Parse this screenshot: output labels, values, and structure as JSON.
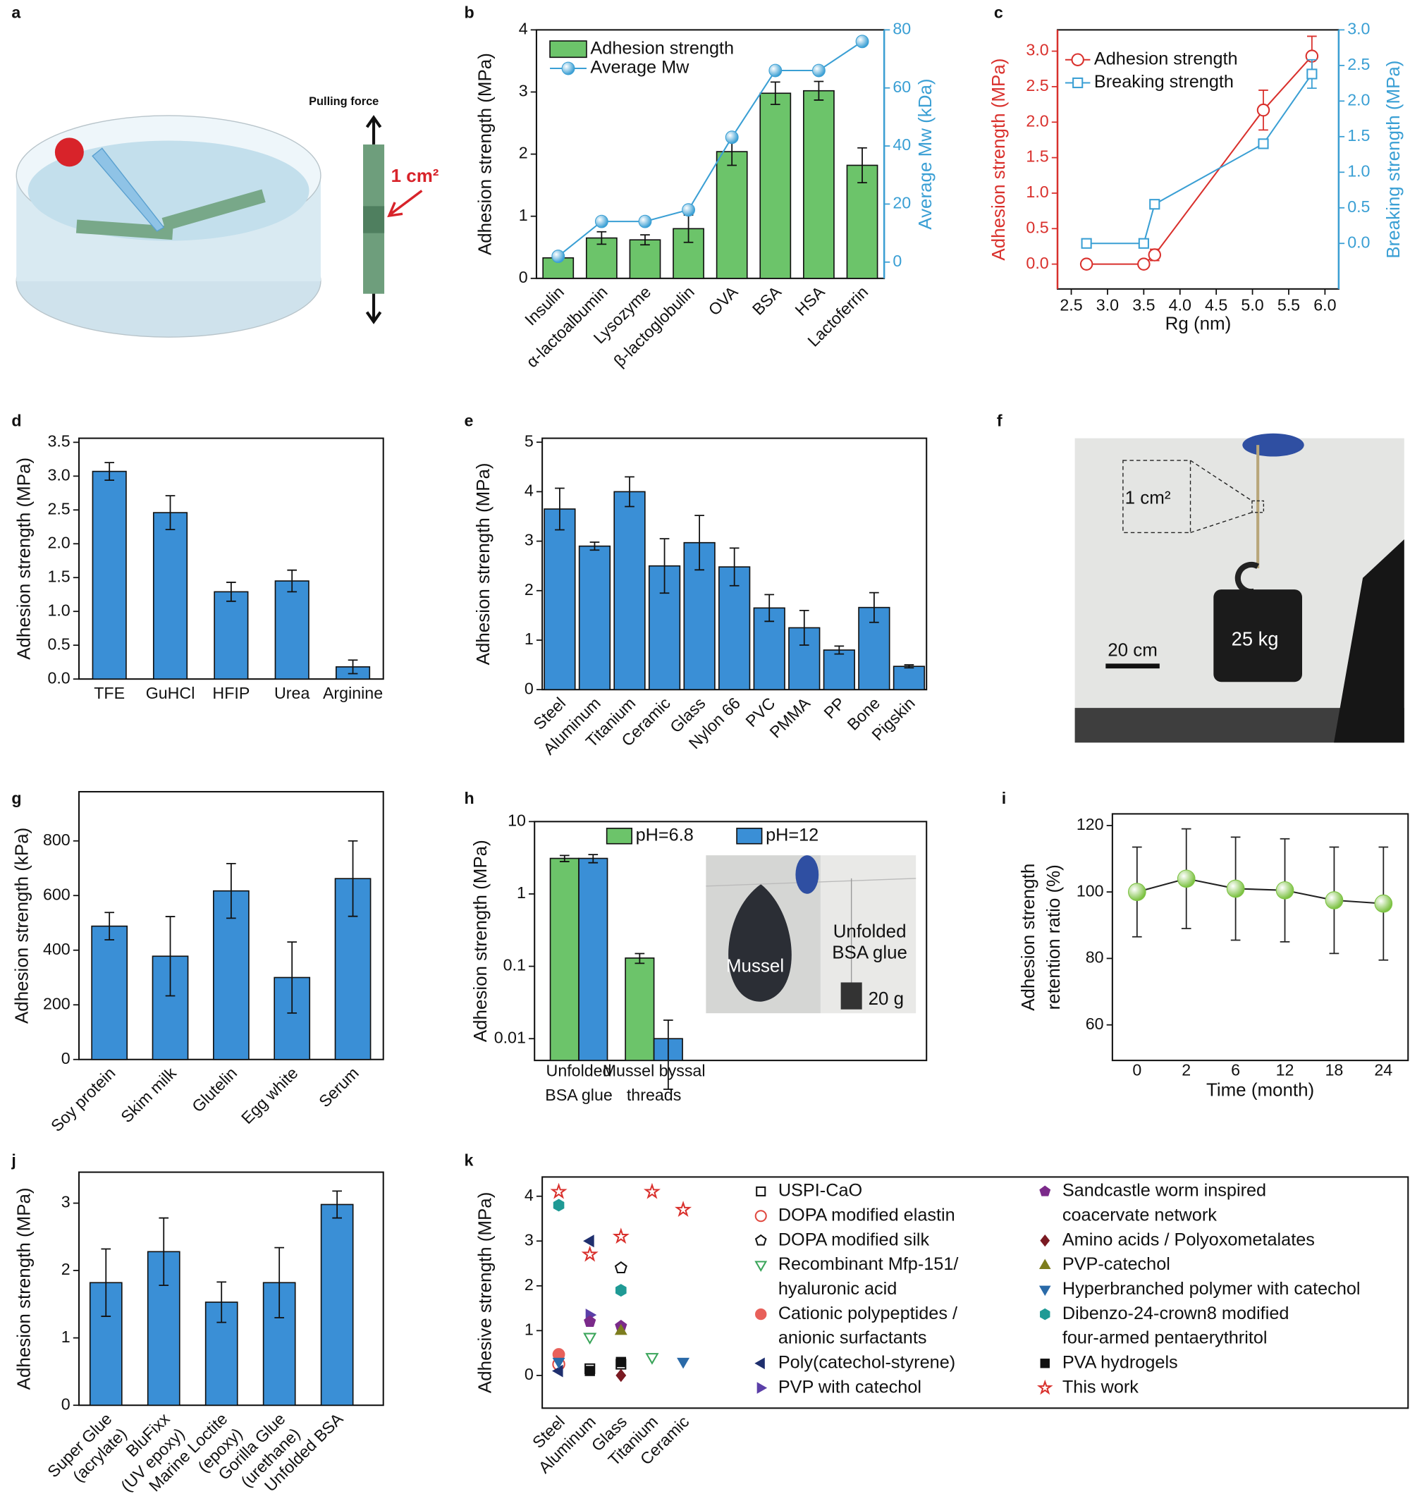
{
  "figure_a": {
    "label": "a",
    "pulling_force": "Pulling force",
    "area": "1 cm²"
  },
  "figure_f": {
    "label": "f",
    "area": "1 cm²",
    "scale": "20 cm",
    "weight": "25 kg"
  },
  "chart_data": [
    {
      "label": "b",
      "type": "bar",
      "categories": [
        "Insulin",
        "α-lactoalbumin",
        "Lysozyme",
        "β-lactoglobulin",
        "OVA",
        "BSA",
        "HSA",
        "Lactoferrin"
      ],
      "ylabel": "Adhesion strength (MPa)",
      "y2label": "Average Mw (kDa)",
      "y2color": "#3a9fd4",
      "ylim": [
        0,
        4
      ],
      "yticks": [
        0,
        1,
        2,
        3,
        4
      ],
      "y2lim": [
        -5.6,
        80
      ],
      "y2ticks": [
        0,
        20,
        40,
        60,
        80
      ],
      "legend": "upper left",
      "series": [
        {
          "name": "Adhesion strength",
          "color": "#6cc46a",
          "values": [
            0.33,
            0.65,
            0.62,
            0.8,
            2.04,
            2.98,
            3.02,
            1.82
          ],
          "errors": [
            0.04,
            0.1,
            0.08,
            0.22,
            0.22,
            0.18,
            0.15,
            0.28
          ]
        },
        {
          "name": "Average Mw",
          "type": "line",
          "axis": "y2",
          "marker": "sphere",
          "color": "#3a9fd4",
          "values": [
            2,
            14,
            14,
            18,
            43,
            66,
            66,
            76
          ]
        }
      ]
    },
    {
      "label": "c",
      "type": "line",
      "xlabel": "Rg (nm)",
      "ylabel": "Adhesion strength (MPa)",
      "y2label": "Breaking strength (MPa)",
      "ycolor": "#d9302c",
      "y2color": "#3a9fd4",
      "xlim": [
        2.31,
        6.19
      ],
      "xticks": [
        2.5,
        {
          "value": 3,
          "label": "3.0"
        },
        3.5,
        {
          "value": 4,
          "label": "4.0"
        },
        4.5,
        {
          "value": 5,
          "label": "5.0"
        },
        5.5,
        {
          "value": 6,
          "label": "6.0"
        }
      ],
      "ylim": [
        -0.35,
        3.3
      ],
      "yticks": [
        {
          "value": 0,
          "label": "0.0"
        },
        0.5,
        {
          "value": 1,
          "label": "1.0"
        },
        1.5,
        {
          "value": 2,
          "label": "2.0"
        },
        2.5,
        {
          "value": 3,
          "label": "3.0"
        }
      ],
      "y2lim": [
        -0.64,
        3.0
      ],
      "y2ticks": [
        {
          "value": 0,
          "label": "0.0"
        },
        0.5,
        {
          "value": 1,
          "label": "1.0"
        },
        1.5,
        {
          "value": 2,
          "label": "2.0"
        },
        2.5,
        {
          "value": 3,
          "label": "3.0"
        }
      ],
      "legend": "upper left",
      "series": [
        {
          "name": "Adhesion strength",
          "color": "#d9302c",
          "marker": "open-circle",
          "x": [
            2.71,
            3.5,
            3.65,
            5.15,
            5.82
          ],
          "values": [
            0,
            0,
            0.13,
            2.17,
            2.93
          ],
          "errors": [
            null,
            null,
            0.08,
            0.28,
            0.28
          ]
        },
        {
          "name": "Breaking strength",
          "color": "#3a9fd4",
          "marker": "open-square",
          "axis": "y2",
          "x": [
            2.71,
            3.5,
            3.65,
            5.15,
            5.82
          ],
          "values": [
            0,
            0,
            0.55,
            1.4,
            2.38
          ],
          "errors": [
            null,
            null,
            null,
            null,
            0.2
          ]
        }
      ]
    },
    {
      "label": "d",
      "type": "bar",
      "categories": [
        "TFE",
        "GuHCl",
        "HFIP",
        "Urea",
        "Arginine"
      ],
      "ylabel": "Adhesion strength (MPa)",
      "color": "#3a8fd6",
      "values": [
        3.07,
        2.46,
        1.29,
        1.45,
        0.18
      ],
      "errors": [
        0.13,
        0.25,
        0.14,
        0.16,
        0.1
      ],
      "ylim": [
        0,
        3.56
      ],
      "yticks": [
        {
          "value": 0,
          "label": "0.0"
        },
        0.5,
        {
          "value": 1,
          "label": "1.0"
        },
        1.5,
        {
          "value": 2,
          "label": "2.0"
        },
        2.5,
        {
          "value": 3,
          "label": "3.0"
        },
        3.5
      ]
    },
    {
      "label": "e",
      "type": "bar",
      "categories": [
        "Steel",
        "Aluminum",
        "Titanium",
        "Ceramic",
        "Glass",
        "Nylon 66",
        "PVC",
        "PMMA",
        "PP",
        "Bone",
        "Pigskin"
      ],
      "ylabel": "Adhesion strength (MPa)",
      "color": "#3a8fd6",
      "values": [
        3.65,
        2.9,
        4.0,
        2.5,
        2.97,
        2.48,
        1.65,
        1.25,
        0.8,
        1.66,
        0.47
      ],
      "errors": [
        0.42,
        0.08,
        0.3,
        0.55,
        0.55,
        0.38,
        0.27,
        0.35,
        0.08,
        0.3,
        0.03
      ],
      "ylim": [
        0,
        5.08
      ],
      "yticks": [
        0,
        1,
        2,
        3,
        4,
        5
      ]
    },
    {
      "label": "g",
      "type": "bar",
      "categories": [
        "Soy protein",
        "Skim milk",
        "Glutelin",
        "Egg white",
        "Serum"
      ],
      "ylabel": "Adhesion strength (kPa)",
      "color": "#3a8fd6",
      "values": [
        488,
        378,
        617,
        300,
        662
      ],
      "errors": [
        50,
        145,
        100,
        130,
        138
      ],
      "ylim": [
        0,
        980
      ],
      "yticks": [
        0,
        200,
        400,
        600,
        800
      ]
    },
    {
      "label": "h",
      "type": "bar",
      "log": true,
      "categories": [
        [
          "Unfolded",
          "BSA glue"
        ],
        [
          "Mussel byssal",
          "threads"
        ]
      ],
      "ylabel": "Adhesion strength (MPa)",
      "ylim": [
        0.005,
        10
      ],
      "yticks": [
        0.01,
        0.1,
        1,
        10
      ],
      "legend": "upper center",
      "series": [
        {
          "name": "pH=6.8",
          "color": "#6cc46a",
          "values": [
            3.1,
            0.13
          ],
          "errors": [
            0.3,
            0.02
          ]
        },
        {
          "name": "pH=12",
          "color": "#3a8fd6",
          "values": [
            3.1,
            0.01
          ],
          "errors": [
            0.4,
            0.008
          ]
        }
      ],
      "inset": {
        "mussel": "Mussel",
        "glue": [
          "Unfolded",
          "BSA glue"
        ],
        "weight": "20 g"
      }
    },
    {
      "label": "i",
      "type": "line",
      "categories": [
        "0",
        "2",
        "6",
        "12",
        "18",
        "24"
      ],
      "xlabel": "Time (month)",
      "ylabel": [
        "Adhesion strength",
        "retention ratio (%)"
      ],
      "ylim": [
        49.3,
        123.5
      ],
      "yticks": [
        60,
        80,
        100,
        120
      ],
      "series": [
        {
          "color": "#7cc242",
          "line_color": "#222222",
          "marker": "sphere",
          "values": [
            100,
            104,
            101,
            100.5,
            97.5,
            96.5
          ],
          "errors": [
            13.5,
            15,
            15.5,
            15.5,
            16,
            17
          ]
        }
      ]
    },
    {
      "label": "j",
      "type": "bar",
      "categories": [
        [
          "Super Glue",
          "(acrylate)"
        ],
        [
          "BluFixx",
          "(UV epoxy)"
        ],
        [
          "Marine Loctite",
          "(epoxy)"
        ],
        [
          "Gorilla Glue",
          "(urethane)"
        ],
        [
          "Unfolded BSA"
        ]
      ],
      "ylabel": "Adhesion strength (MPa)",
      "color": "#3a8fd6",
      "values": [
        1.82,
        2.28,
        1.53,
        1.82,
        2.98
      ],
      "errors": [
        0.5,
        0.5,
        0.3,
        0.52,
        0.2
      ],
      "ylim": [
        0,
        3.46
      ],
      "yticks": [
        0,
        1,
        2,
        3
      ]
    },
    {
      "label": "k",
      "type": "scatter",
      "categories": [
        "Steel",
        "Aluminum",
        "Glass",
        "Titanium",
        "Ceramic"
      ],
      "ylabel": "Adhesive strength (MPa)",
      "ylim": [
        -0.73,
        4.43
      ],
      "yticks": [
        0,
        1,
        2,
        3,
        4
      ],
      "legend": "right",
      "series": [
        {
          "name": "USPI-CaO",
          "marker": "open-square",
          "color": "#111111",
          "values": [
            null,
            0.15,
            0.25,
            null,
            null
          ]
        },
        {
          "name": "DOPA modified elastin",
          "marker": "open-circle",
          "color": "#e0483f",
          "values": [
            0.25,
            null,
            null,
            null,
            null
          ]
        },
        {
          "name": "DOPA modified silk",
          "marker": "open-pentagon",
          "color": "#111111",
          "values": [
            null,
            null,
            2.4,
            null,
            null
          ]
        },
        {
          "name": [
            "Recombinant Mfp-151/",
            "hyaluronic acid"
          ],
          "marker": "open-triangle-down",
          "color": "#3aa55a",
          "values": [
            null,
            0.85,
            null,
            0.4,
            null
          ]
        },
        {
          "name": [
            "Cationic polypeptides /",
            "anionic surfactants"
          ],
          "marker": "circle",
          "color": "#e8605a",
          "values": [
            0.47,
            null,
            null,
            null,
            null
          ]
        },
        {
          "name": "Poly(catechol-styrene)",
          "marker": "triangle-left",
          "color": "#1f2f6e",
          "values": [
            0.1,
            3.0,
            null,
            null,
            null
          ]
        },
        {
          "name": "PVP with catechol",
          "marker": "triangle-right",
          "color": "#5b3fa8",
          "values": [
            null,
            1.35,
            null,
            null,
            null
          ]
        },
        {
          "name": [
            "Sandcastle worm inspired",
            "coacervate network"
          ],
          "marker": "pentagon",
          "color": "#7b2a8a",
          "values": [
            null,
            1.2,
            1.1,
            null,
            null
          ]
        },
        {
          "name": "Amino acids / Polyoxometalates",
          "marker": "diamond",
          "color": "#7a1a22",
          "values": [
            null,
            null,
            0.0,
            null,
            null
          ]
        },
        {
          "name": "PVP-catechol",
          "marker": "triangle-up",
          "color": "#7d7d1e",
          "values": [
            null,
            null,
            1.0,
            null,
            null
          ]
        },
        {
          "name": "Hyperbranched polymer with catechol",
          "marker": "triangle-down",
          "color": "#2a6aa8",
          "values": [
            0.3,
            null,
            null,
            null,
            0.3
          ]
        },
        {
          "name": [
            "Dibenzo-24-crown8 modified",
            "four-armed pentaerythritol"
          ],
          "marker": "hexagon",
          "color": "#1f9a95",
          "values": [
            3.8,
            null,
            1.9,
            null,
            null
          ]
        },
        {
          "name": "PVA hydrogels",
          "marker": "square",
          "color": "#111111",
          "values": [
            null,
            0.1,
            0.3,
            null,
            null
          ]
        },
        {
          "name": "This work",
          "marker": "open-star",
          "color": "#d9302c",
          "values": [
            4.1,
            2.7,
            3.1,
            4.1,
            3.7
          ]
        }
      ]
    }
  ]
}
